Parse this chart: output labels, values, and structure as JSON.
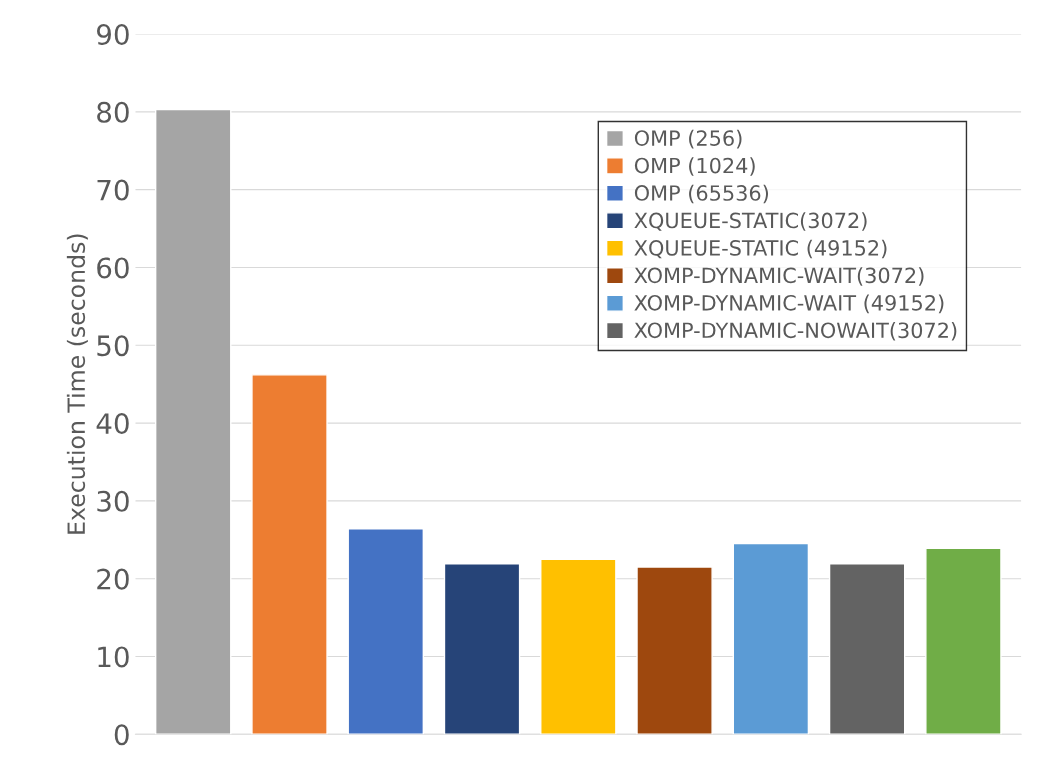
{
  "chart_data": {
    "type": "bar",
    "ylabel": "Execution Time (seconds)",
    "categories": [
      null,
      null,
      null,
      null,
      null,
      null,
      null,
      null,
      null
    ],
    "series": [
      {
        "name": "OMP (256)",
        "color": "#a5a5a5",
        "values": [
          80.3,
          null,
          null,
          null,
          null,
          null,
          null,
          null,
          null
        ]
      },
      {
        "name": "OMP (1024)",
        "color": "#ed7d31",
        "values": [
          null,
          46.2,
          null,
          null,
          null,
          null,
          null,
          null,
          null
        ]
      },
      {
        "name": "OMP (65536)",
        "color": "#4472c4",
        "values": [
          null,
          null,
          26.4,
          null,
          null,
          null,
          null,
          null,
          null
        ]
      },
      {
        "name": "XQUEUE-STATIC(3072)",
        "color": "#264478",
        "values": [
          null,
          null,
          null,
          21.9,
          null,
          null,
          null,
          null,
          null
        ]
      },
      {
        "name": "XQUEUE-STATIC (49152)",
        "color": "#ffc000",
        "values": [
          null,
          null,
          null,
          null,
          22.5,
          null,
          null,
          null,
          null
        ]
      },
      {
        "name": "XOMP-DYNAMIC-WAIT(3072)",
        "color": "#9e480e",
        "values": [
          null,
          null,
          null,
          null,
          null,
          21.5,
          null,
          null,
          null
        ]
      },
      {
        "name": "XOMP-DYNAMIC-WAIT (49152)",
        "color": "#5b9bd5",
        "values": [
          null,
          null,
          null,
          null,
          null,
          null,
          24.5,
          null,
          null
        ]
      },
      {
        "name": "XOMP-DYNAMIC-NOWAIT(3072)",
        "color": "#636363",
        "values": [
          null,
          null,
          null,
          null,
          null,
          null,
          null,
          21.9,
          null
        ]
      },
      {
        "color": "#70ad47",
        "values": [
          null,
          null,
          null,
          null,
          null,
          null,
          null,
          null,
          23.9
        ]
      }
    ],
    "ylim": [
      0,
      90
    ],
    "yticks": [
      0,
      10,
      20,
      30,
      40,
      50,
      60,
      70,
      80,
      90
    ],
    "grid": "y",
    "legend": "top right"
  }
}
